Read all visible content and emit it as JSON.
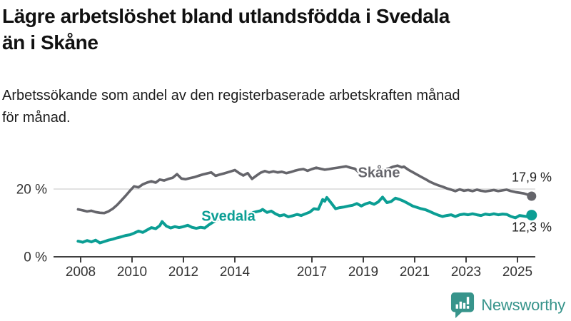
{
  "header": {
    "title_lines": [
      "Lägre arbetslöshet bland utlandsfödda i Svedala",
      "än i Skåne"
    ],
    "subtitle_lines": [
      "Arbetssökande som andel av den registerbaserade arbetskraften månad",
      "för månad."
    ]
  },
  "chart_data": {
    "type": "line",
    "title": "Lägre arbetslöshet bland utlandsfödda i Svedala än i Skåne",
    "subtitle": "Arbetssökande som andel av den registerbaserade arbetskraften månad för månad.",
    "x_unit": "year (decimal years, monthly observations)",
    "x_axis": {
      "ticks": [
        2008,
        2010,
        2012,
        2014,
        2017,
        2019,
        2021,
        2023,
        2025
      ],
      "range": [
        2007.9,
        2025.6
      ]
    },
    "y_axis": {
      "ticks": [
        {
          "value": 0,
          "label": "0 %"
        },
        {
          "value": 20,
          "label": "20 %"
        }
      ],
      "range": [
        0,
        28.5
      ],
      "gridline_color": "#d9d9d9",
      "axis_color": "#404040"
    },
    "series": [
      {
        "name": "Skåne",
        "color": "#65656b",
        "end_label": "17,9 %",
        "end_value": 17.9,
        "points": [
          [
            2007.9,
            14.0
          ],
          [
            2008.08,
            13.7
          ],
          [
            2008.25,
            13.4
          ],
          [
            2008.42,
            13.6
          ],
          [
            2008.58,
            13.2
          ],
          [
            2008.75,
            13.0
          ],
          [
            2008.92,
            12.9
          ],
          [
            2009.08,
            13.4
          ],
          [
            2009.25,
            14.2
          ],
          [
            2009.42,
            15.3
          ],
          [
            2009.58,
            16.6
          ],
          [
            2009.75,
            18.0
          ],
          [
            2009.92,
            19.5
          ],
          [
            2010.08,
            20.8
          ],
          [
            2010.25,
            20.5
          ],
          [
            2010.42,
            21.4
          ],
          [
            2010.58,
            21.9
          ],
          [
            2010.75,
            22.3
          ],
          [
            2010.92,
            21.9
          ],
          [
            2011.08,
            22.8
          ],
          [
            2011.25,
            22.5
          ],
          [
            2011.42,
            23.0
          ],
          [
            2011.58,
            23.3
          ],
          [
            2011.75,
            24.4
          ],
          [
            2011.92,
            23.1
          ],
          [
            2012.08,
            22.9
          ],
          [
            2012.25,
            23.2
          ],
          [
            2012.42,
            23.5
          ],
          [
            2012.58,
            23.9
          ],
          [
            2012.75,
            24.3
          ],
          [
            2012.92,
            24.6
          ],
          [
            2013.08,
            24.9
          ],
          [
            2013.25,
            23.9
          ],
          [
            2013.42,
            24.3
          ],
          [
            2013.58,
            24.6
          ],
          [
            2013.75,
            25.0
          ],
          [
            2013.92,
            25.4
          ],
          [
            2014.0,
            25.6
          ],
          [
            2014.17,
            24.7
          ],
          [
            2014.33,
            24.0
          ],
          [
            2014.5,
            24.7
          ],
          [
            2014.67,
            23.0
          ],
          [
            2014.83,
            23.9
          ],
          [
            2015.0,
            24.8
          ],
          [
            2015.17,
            25.3
          ],
          [
            2015.33,
            24.9
          ],
          [
            2015.5,
            25.2
          ],
          [
            2015.67,
            24.9
          ],
          [
            2015.83,
            25.1
          ],
          [
            2016.0,
            24.7
          ],
          [
            2016.17,
            25.0
          ],
          [
            2016.33,
            25.4
          ],
          [
            2016.5,
            25.7
          ],
          [
            2016.67,
            25.9
          ],
          [
            2016.83,
            25.4
          ],
          [
            2017.0,
            25.9
          ],
          [
            2017.17,
            26.3
          ],
          [
            2017.33,
            26.0
          ],
          [
            2017.5,
            25.7
          ],
          [
            2017.67,
            25.9
          ],
          [
            2017.83,
            26.1
          ],
          [
            2018.0,
            26.3
          ],
          [
            2018.17,
            26.5
          ],
          [
            2018.33,
            26.7
          ],
          [
            2018.5,
            26.3
          ],
          [
            2018.67,
            26.0
          ],
          [
            2018.83,
            24.9
          ],
          [
            2019.0,
            25.1
          ],
          [
            2019.17,
            25.4
          ],
          [
            2019.33,
            25.1
          ],
          [
            2019.5,
            25.3
          ],
          [
            2019.67,
            25.5
          ],
          [
            2019.83,
            25.7
          ],
          [
            2020.0,
            26.1
          ],
          [
            2020.17,
            26.6
          ],
          [
            2020.33,
            26.9
          ],
          [
            2020.5,
            26.4
          ],
          [
            2020.58,
            26.6
          ],
          [
            2020.75,
            25.7
          ],
          [
            2020.92,
            25.0
          ],
          [
            2021.08,
            24.3
          ],
          [
            2021.25,
            23.6
          ],
          [
            2021.42,
            22.9
          ],
          [
            2021.58,
            22.2
          ],
          [
            2021.75,
            21.6
          ],
          [
            2021.92,
            21.1
          ],
          [
            2022.08,
            20.7
          ],
          [
            2022.25,
            20.2
          ],
          [
            2022.42,
            19.8
          ],
          [
            2022.58,
            19.4
          ],
          [
            2022.75,
            19.9
          ],
          [
            2022.92,
            19.5
          ],
          [
            2023.08,
            19.7
          ],
          [
            2023.25,
            19.4
          ],
          [
            2023.42,
            19.8
          ],
          [
            2023.58,
            19.5
          ],
          [
            2023.75,
            19.3
          ],
          [
            2023.92,
            19.5
          ],
          [
            2024.08,
            19.7
          ],
          [
            2024.25,
            19.4
          ],
          [
            2024.42,
            19.6
          ],
          [
            2024.58,
            19.8
          ],
          [
            2024.75,
            19.4
          ],
          [
            2024.92,
            19.1
          ],
          [
            2025.08,
            18.9
          ],
          [
            2025.25,
            18.7
          ],
          [
            2025.42,
            18.3
          ],
          [
            2025.55,
            17.9
          ]
        ]
      },
      {
        "name": "Svedala",
        "color": "#0b9e94",
        "end_label": "12,3 %",
        "end_value": 12.3,
        "points": [
          [
            2007.9,
            4.6
          ],
          [
            2008.08,
            4.3
          ],
          [
            2008.25,
            4.8
          ],
          [
            2008.42,
            4.4
          ],
          [
            2008.58,
            4.9
          ],
          [
            2008.75,
            4.1
          ],
          [
            2008.92,
            4.5
          ],
          [
            2009.08,
            4.9
          ],
          [
            2009.25,
            5.2
          ],
          [
            2009.42,
            5.6
          ],
          [
            2009.58,
            5.9
          ],
          [
            2009.75,
            6.3
          ],
          [
            2009.92,
            6.5
          ],
          [
            2010.08,
            7.0
          ],
          [
            2010.25,
            7.6
          ],
          [
            2010.42,
            7.2
          ],
          [
            2010.58,
            7.9
          ],
          [
            2010.75,
            8.6
          ],
          [
            2010.92,
            8.3
          ],
          [
            2011.08,
            9.2
          ],
          [
            2011.17,
            10.4
          ],
          [
            2011.33,
            9.1
          ],
          [
            2011.5,
            8.5
          ],
          [
            2011.67,
            8.9
          ],
          [
            2011.83,
            8.6
          ],
          [
            2012.0,
            8.9
          ],
          [
            2012.17,
            9.3
          ],
          [
            2012.33,
            8.7
          ],
          [
            2012.5,
            8.4
          ],
          [
            2012.67,
            8.7
          ],
          [
            2012.83,
            8.5
          ],
          [
            2013.0,
            9.5
          ],
          [
            2013.17,
            10.3
          ],
          [
            2013.33,
            11.0
          ],
          [
            2013.5,
            11.5
          ],
          [
            2013.67,
            11.9
          ],
          [
            2013.83,
            12.2
          ],
          [
            2014.0,
            12.5
          ],
          [
            2014.17,
            12.8
          ],
          [
            2014.33,
            12.4
          ],
          [
            2014.5,
            12.7
          ],
          [
            2014.67,
            13.0
          ],
          [
            2014.83,
            13.3
          ],
          [
            2015.0,
            13.6
          ],
          [
            2015.08,
            14.0
          ],
          [
            2015.25,
            13.1
          ],
          [
            2015.42,
            13.5
          ],
          [
            2015.58,
            12.7
          ],
          [
            2015.75,
            12.1
          ],
          [
            2015.92,
            12.4
          ],
          [
            2016.08,
            11.8
          ],
          [
            2016.25,
            12.1
          ],
          [
            2016.42,
            12.5
          ],
          [
            2016.58,
            12.2
          ],
          [
            2016.75,
            12.7
          ],
          [
            2016.92,
            13.2
          ],
          [
            2017.08,
            14.2
          ],
          [
            2017.25,
            14.0
          ],
          [
            2017.42,
            16.9
          ],
          [
            2017.5,
            16.4
          ],
          [
            2017.58,
            17.5
          ],
          [
            2017.75,
            15.9
          ],
          [
            2017.92,
            14.2
          ],
          [
            2018.08,
            14.5
          ],
          [
            2018.25,
            14.7
          ],
          [
            2018.42,
            15.0
          ],
          [
            2018.58,
            15.2
          ],
          [
            2018.75,
            15.7
          ],
          [
            2018.92,
            15.0
          ],
          [
            2019.08,
            15.6
          ],
          [
            2019.25,
            16.0
          ],
          [
            2019.42,
            15.5
          ],
          [
            2019.58,
            16.2
          ],
          [
            2019.75,
            17.6
          ],
          [
            2019.92,
            16.0
          ],
          [
            2020.08,
            16.3
          ],
          [
            2020.25,
            17.3
          ],
          [
            2020.42,
            16.9
          ],
          [
            2020.58,
            16.4
          ],
          [
            2020.75,
            15.7
          ],
          [
            2020.92,
            15.0
          ],
          [
            2021.08,
            14.6
          ],
          [
            2021.25,
            14.2
          ],
          [
            2021.42,
            13.9
          ],
          [
            2021.58,
            13.4
          ],
          [
            2021.75,
            12.8
          ],
          [
            2021.92,
            12.3
          ],
          [
            2022.08,
            11.9
          ],
          [
            2022.25,
            12.2
          ],
          [
            2022.42,
            12.4
          ],
          [
            2022.58,
            11.9
          ],
          [
            2022.75,
            12.4
          ],
          [
            2022.92,
            12.6
          ],
          [
            2023.08,
            12.4
          ],
          [
            2023.25,
            12.7
          ],
          [
            2023.42,
            12.4
          ],
          [
            2023.58,
            12.2
          ],
          [
            2023.75,
            12.6
          ],
          [
            2023.92,
            12.4
          ],
          [
            2024.08,
            12.7
          ],
          [
            2024.25,
            12.4
          ],
          [
            2024.42,
            12.6
          ],
          [
            2024.58,
            12.5
          ],
          [
            2024.75,
            11.9
          ],
          [
            2024.92,
            11.5
          ],
          [
            2025.08,
            12.2
          ],
          [
            2025.25,
            12.0
          ],
          [
            2025.42,
            11.8
          ],
          [
            2025.55,
            12.3
          ]
        ]
      }
    ],
    "legend_position": "inline-labels-on-lines",
    "grid": "single horizontal gridline at 20 %"
  },
  "logo": {
    "text": "Newsworthy",
    "color": "#37948b",
    "icon": "speech-bubble-bar-chart-icon"
  }
}
